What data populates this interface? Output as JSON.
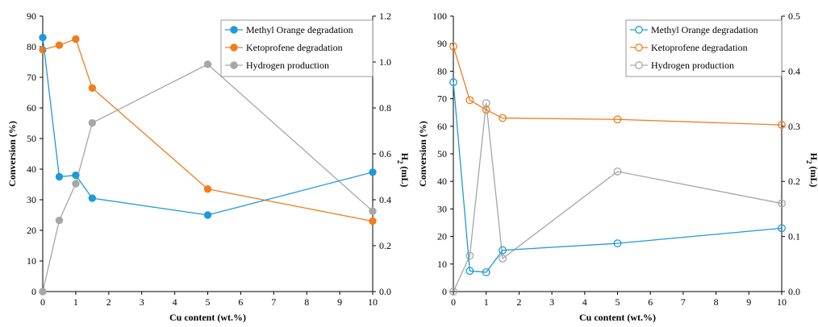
{
  "chart_data": [
    {
      "type": "line",
      "marker": "filled",
      "xlabel": "Cu content (wt.%)",
      "ylabel_left": "Conversion (%)",
      "ylabel_right": "H",
      "ylabel_right_sub": "2",
      "ylabel_right_unit": " (mL)",
      "xlim": [
        0,
        10
      ],
      "ylim_left": [
        0,
        90
      ],
      "ylim_right": [
        0,
        1.2
      ],
      "x_ticks": [
        "0",
        "1",
        "2",
        "3",
        "4",
        "5",
        "6",
        "7",
        "8",
        "9",
        "10"
      ],
      "y_left_ticks": [
        "0",
        "10",
        "20",
        "30",
        "40",
        "50",
        "60",
        "70",
        "80",
        "90"
      ],
      "y_right_ticks": [
        "0.0",
        "0.2",
        "0.4",
        "0.6",
        "0.8",
        "1.0",
        "1.2"
      ],
      "legend_position": "top-right",
      "series": [
        {
          "name": "Methyl Orange degradation",
          "axis": "left",
          "color": "#1f9ad6",
          "x": [
            0,
            0.5,
            1,
            1.5,
            5,
            10
          ],
          "y": [
            83,
            37.5,
            38,
            30.5,
            25,
            39
          ]
        },
        {
          "name": "Ketoprofene degradation",
          "axis": "left",
          "color": "#f07d1e",
          "x": [
            0,
            0.5,
            1,
            1.5,
            5,
            10
          ],
          "y": [
            79,
            80.5,
            82.5,
            66.5,
            33.5,
            23
          ]
        },
        {
          "name": "Hydrogen production",
          "axis": "right",
          "color": "#a6a6a6",
          "x": [
            0,
            0.5,
            1,
            1.5,
            5,
            10
          ],
          "y": [
            0.0,
            0.31,
            0.47,
            0.735,
            0.99,
            0.35
          ]
        }
      ]
    },
    {
      "type": "line",
      "marker": "open",
      "xlabel": "Cu content (wt.%)",
      "ylabel_left": "Conversion (%)",
      "ylabel_right": "H",
      "ylabel_right_sub": "2",
      "ylabel_right_unit": " (mL)",
      "xlim": [
        0,
        10
      ],
      "ylim_left": [
        0,
        100
      ],
      "ylim_right": [
        0,
        0.5
      ],
      "x_ticks": [
        "0",
        "1",
        "2",
        "3",
        "4",
        "5",
        "6",
        "7",
        "8",
        "9",
        "10"
      ],
      "y_left_ticks": [
        "0",
        "10",
        "20",
        "30",
        "40",
        "50",
        "60",
        "70",
        "80",
        "90",
        "100"
      ],
      "y_right_ticks": [
        "0.0",
        "0.1",
        "0.2",
        "0.3",
        "0.4",
        "0.5"
      ],
      "legend_position": "top-right",
      "series": [
        {
          "name": "Methyl Orange degradation",
          "axis": "left",
          "color": "#1f9ad6",
          "x": [
            0,
            0.5,
            1,
            1.5,
            5,
            10
          ],
          "y": [
            76,
            7.5,
            7,
            15,
            17.5,
            23
          ]
        },
        {
          "name": "Ketoprofene degradation",
          "axis": "left",
          "color": "#f07d1e",
          "x": [
            0,
            0.5,
            1,
            1.5,
            5,
            10
          ],
          "y": [
            89,
            69.5,
            66,
            63,
            62.5,
            60.5
          ]
        },
        {
          "name": "Hydrogen production",
          "axis": "right",
          "color": "#a6a6a6",
          "x": [
            0,
            0.5,
            1,
            1.5,
            5,
            10
          ],
          "y": [
            0.0,
            0.065,
            0.342,
            0.06,
            0.218,
            0.16
          ]
        }
      ]
    }
  ]
}
